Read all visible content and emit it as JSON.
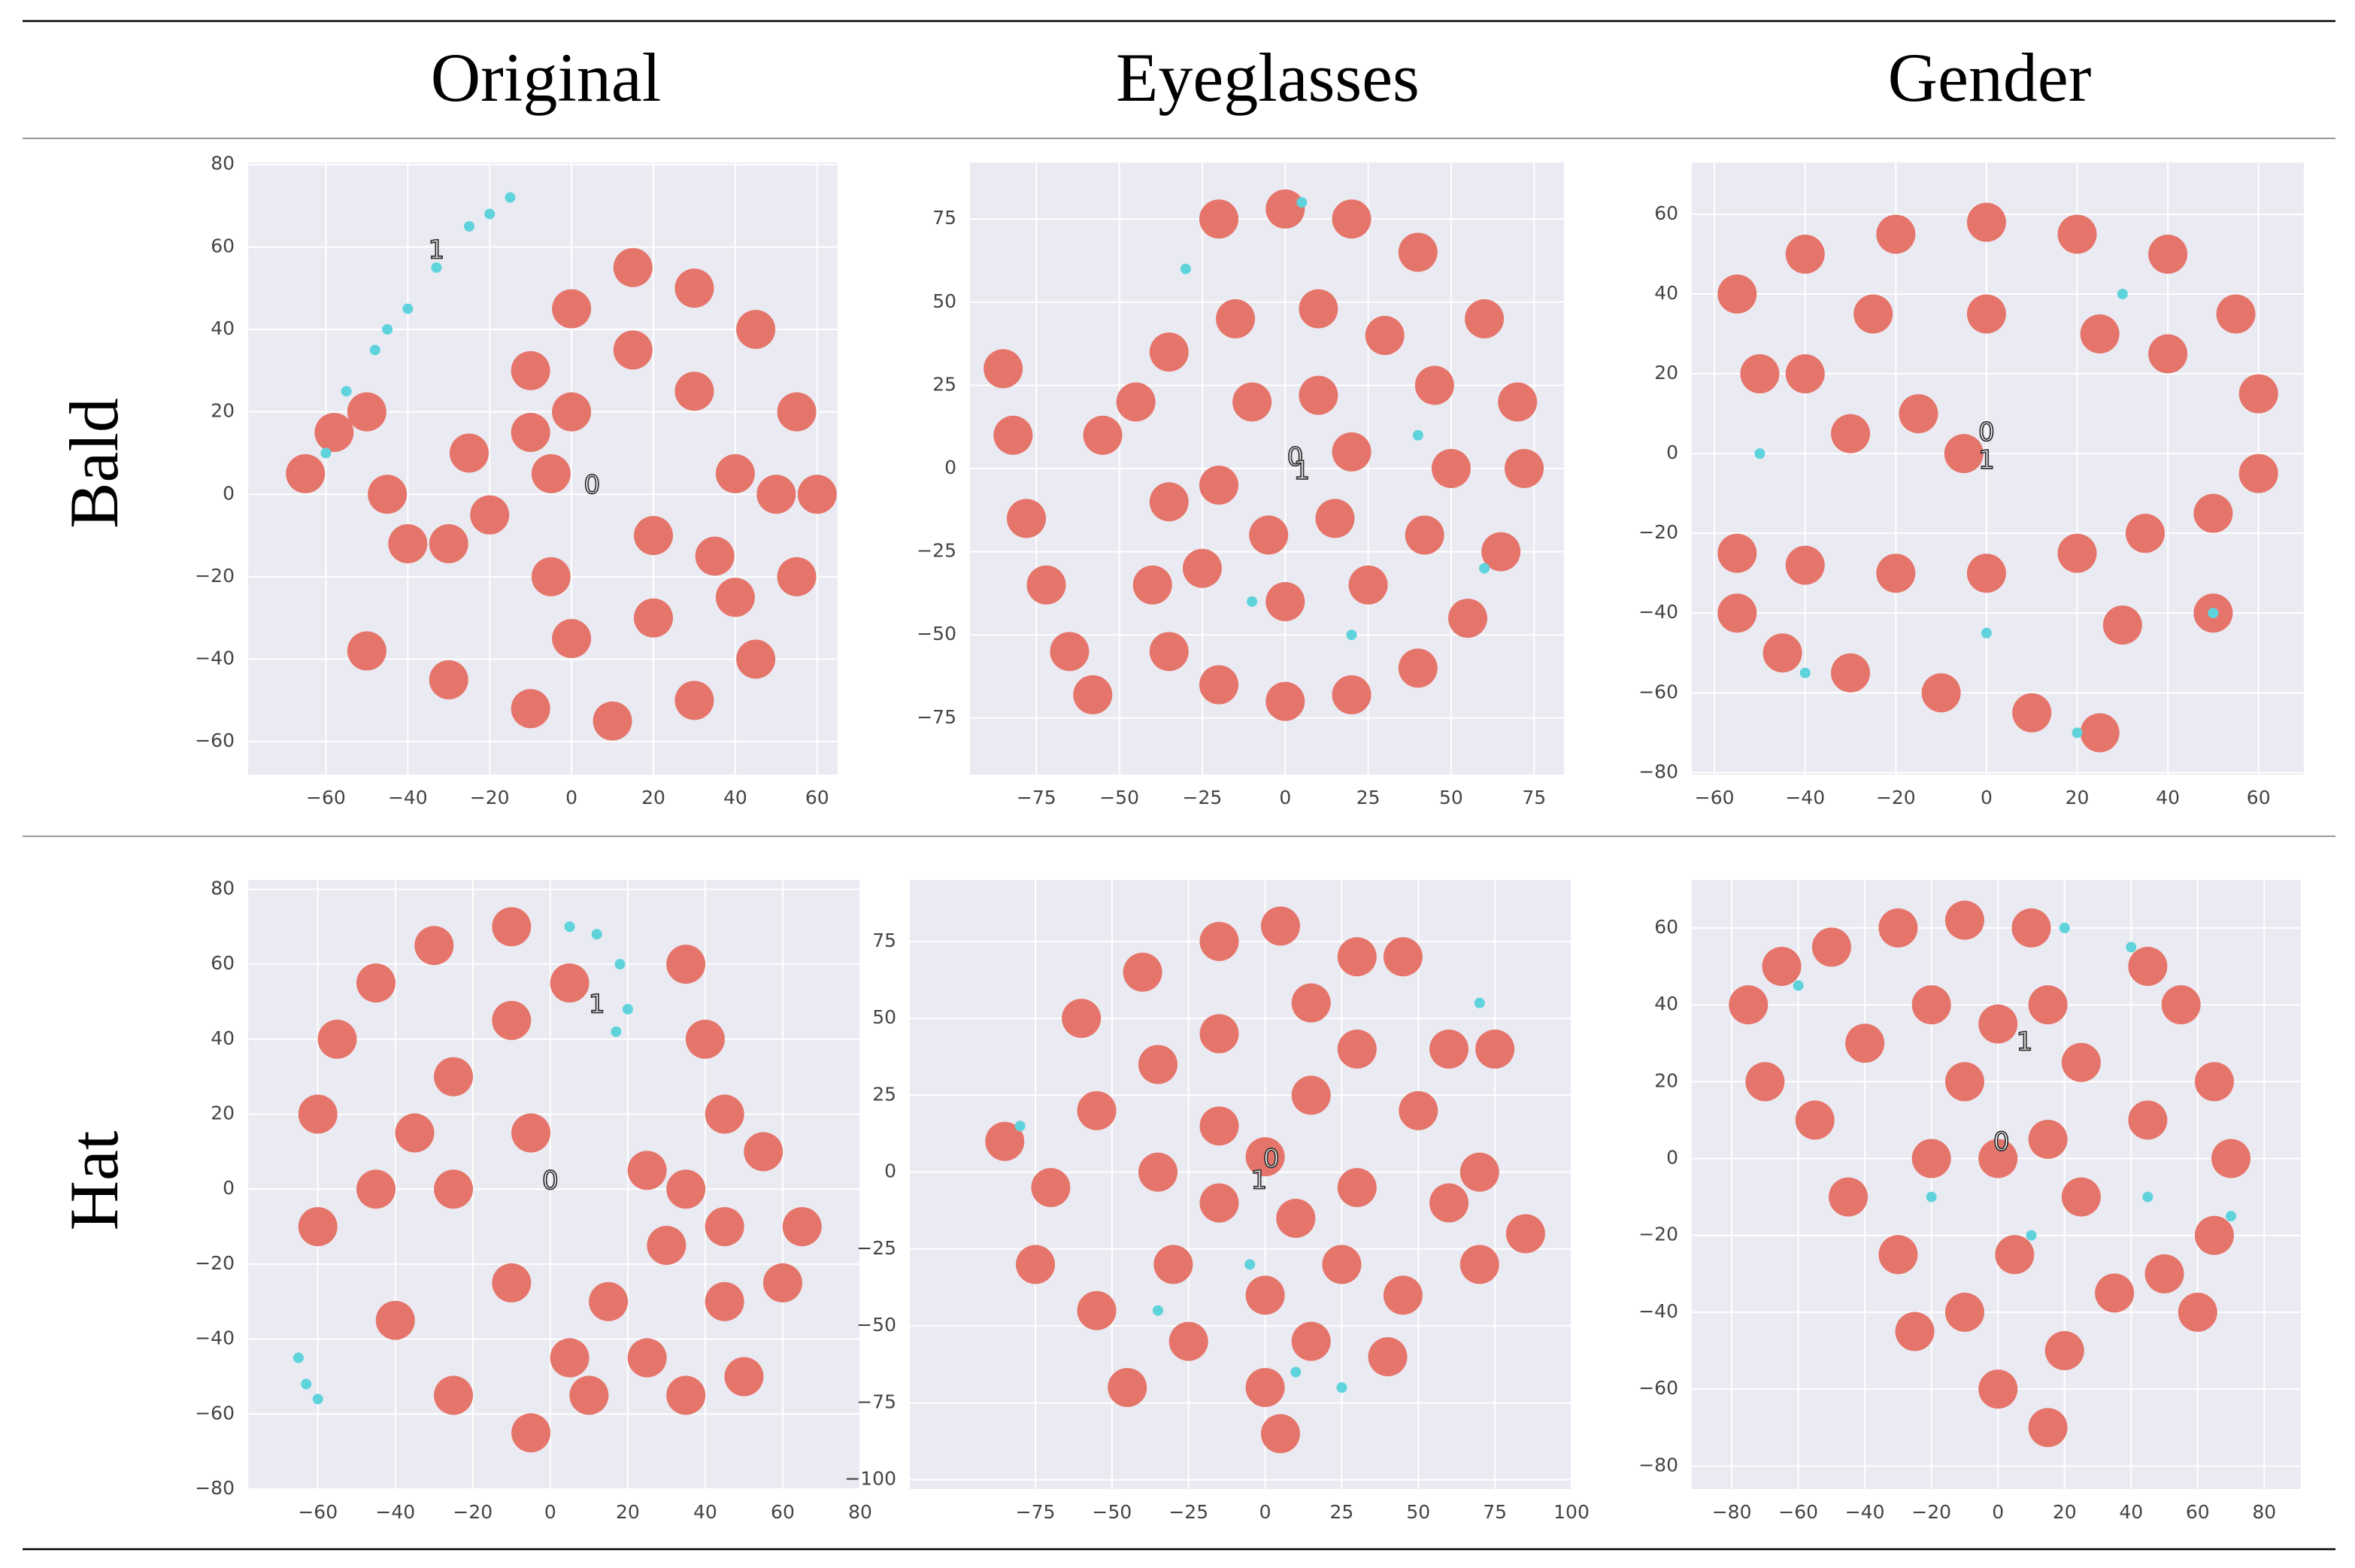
{
  "header": {
    "columns": [
      "Original",
      "Eyeglasses",
      "Gender"
    ],
    "rows": [
      "Bald",
      "Hat"
    ]
  },
  "chart_data": [
    {
      "type": "scatter",
      "grid": true,
      "xlim": [
        -79,
        65
      ],
      "ylim": [
        -68,
        80.5
      ],
      "xticks": [
        {
          "value": -60,
          "label": "−60"
        },
        {
          "value": -40,
          "label": "−40"
        },
        {
          "value": -20,
          "label": "−20"
        },
        0,
        20,
        40,
        60
      ],
      "yticks": [
        {
          "value": -60,
          "label": "−60"
        },
        {
          "value": -40,
          "label": "−40"
        },
        {
          "value": -20,
          "label": "−20"
        },
        0,
        20,
        40,
        60,
        80
      ],
      "series": [
        {
          "color": "#e5756a",
          "x": [
            -65,
            -58,
            -50,
            -45,
            -40,
            -30,
            -20,
            -25,
            -10,
            -10,
            0,
            15,
            30,
            45,
            55,
            60,
            55,
            45,
            30,
            10,
            -10,
            -30,
            -50,
            0,
            20,
            35,
            40,
            30,
            15,
            0,
            -5,
            20,
            -5,
            40,
            50
          ],
          "y": [
            5,
            15,
            20,
            0,
            -12,
            -12,
            -5,
            10,
            15,
            30,
            45,
            55,
            50,
            40,
            20,
            0,
            -20,
            -40,
            -50,
            -55,
            -52,
            -45,
            -38,
            -35,
            -30,
            -15,
            5,
            25,
            35,
            20,
            5,
            -10,
            -20,
            -25,
            0
          ]
        },
        {
          "color": "#5fd3dc",
          "x": [
            -60,
            -55,
            -48,
            -45,
            -40,
            -33,
            -25,
            -20,
            -15
          ],
          "y": [
            10,
            25,
            35,
            40,
            45,
            55,
            65,
            68,
            72
          ]
        }
      ],
      "annotations": [
        {
          "text": "0",
          "x": 5,
          "y": 2
        },
        {
          "text": "1",
          "x": -33,
          "y": 59
        }
      ]
    },
    {
      "type": "scatter",
      "grid": true,
      "xlim": [
        -95,
        84
      ],
      "ylim": [
        -92,
        92
      ],
      "xticks": [
        {
          "value": -75,
          "label": "−75"
        },
        {
          "value": -50,
          "label": "−50"
        },
        {
          "value": -25,
          "label": "−25"
        },
        0,
        25,
        50,
        75
      ],
      "yticks": [
        {
          "value": -75,
          "label": "−75"
        },
        {
          "value": -50,
          "label": "−50"
        },
        {
          "value": -25,
          "label": "−25"
        },
        0,
        25,
        50,
        75
      ],
      "series": [
        {
          "color": "#e5756a",
          "x": [
            -20,
            0,
            20,
            40,
            60,
            70,
            72,
            65,
            55,
            40,
            20,
            0,
            -20,
            -35,
            -40,
            -45,
            -35,
            -15,
            10,
            30,
            45,
            50,
            42,
            25,
            0,
            -25,
            -35,
            -55,
            -10,
            10,
            20,
            15,
            -5,
            -20,
            -85,
            -82,
            -78,
            -72,
            -65,
            -58
          ],
          "y": [
            75,
            78,
            75,
            65,
            45,
            20,
            0,
            -25,
            -45,
            -60,
            -68,
            -70,
            -65,
            -55,
            -35,
            20,
            35,
            45,
            48,
            40,
            25,
            0,
            -20,
            -35,
            -40,
            -30,
            -10,
            10,
            20,
            22,
            5,
            -15,
            -20,
            -5,
            30,
            10,
            -15,
            -35,
            -55,
            -68
          ]
        },
        {
          "color": "#5fd3dc",
          "x": [
            -30,
            20,
            40,
            -10,
            60,
            5
          ],
          "y": [
            60,
            -50,
            10,
            -40,
            -30,
            80
          ]
        }
      ],
      "annotations": [
        {
          "text": "0",
          "x": 3,
          "y": 3
        },
        {
          "text": "1",
          "x": 5,
          "y": -1
        }
      ]
    },
    {
      "type": "scatter",
      "grid": true,
      "xlim": [
        -65,
        70
      ],
      "ylim": [
        -80.5,
        73
      ],
      "xticks": [
        {
          "value": -60,
          "label": "−60"
        },
        {
          "value": -40,
          "label": "−40"
        },
        {
          "value": -20,
          "label": "−20"
        },
        0,
        20,
        40,
        60
      ],
      "yticks": [
        {
          "value": -80,
          "label": "−80"
        },
        {
          "value": -60,
          "label": "−60"
        },
        {
          "value": -40,
          "label": "−40"
        },
        {
          "value": -20,
          "label": "−20"
        },
        0,
        20,
        40,
        60
      ],
      "series": [
        {
          "color": "#e5756a",
          "x": [
            -55,
            -50,
            -40,
            -20,
            0,
            20,
            40,
            55,
            60,
            60,
            50,
            35,
            20,
            0,
            -20,
            -40,
            -55,
            -55,
            -45,
            -30,
            -10,
            10,
            25,
            -40,
            -30,
            -15,
            -5,
            0,
            25,
            -25,
            40,
            30,
            50
          ],
          "y": [
            40,
            20,
            50,
            55,
            58,
            55,
            50,
            35,
            15,
            -5,
            -15,
            -20,
            -25,
            -30,
            -30,
            -28,
            -25,
            -40,
            -50,
            -55,
            -60,
            -65,
            -70,
            20,
            5,
            10,
            0,
            35,
            30,
            35,
            25,
            -43,
            -40
          ]
        },
        {
          "color": "#5fd3dc",
          "x": [
            -50,
            30,
            50,
            0,
            -40,
            20
          ],
          "y": [
            0,
            40,
            -40,
            -45,
            -55,
            -70
          ]
        }
      ],
      "annotations": [
        {
          "text": "0",
          "x": 0,
          "y": 5
        },
        {
          "text": "1",
          "x": 0,
          "y": -2
        }
      ]
    },
    {
      "type": "scatter",
      "grid": true,
      "xlim": [
        -78,
        80
      ],
      "ylim": [
        -80,
        82.5
      ],
      "xticks": [
        {
          "value": -60,
          "label": "−60"
        },
        {
          "value": -40,
          "label": "−40"
        },
        {
          "value": -20,
          "label": "−20"
        },
        0,
        20,
        40,
        60,
        80
      ],
      "yticks": [
        {
          "value": -80,
          "label": "−80"
        },
        {
          "value": -60,
          "label": "−60"
        },
        {
          "value": -40,
          "label": "−40"
        },
        {
          "value": -20,
          "label": "−20"
        },
        0,
        20,
        40,
        60,
        80
      ],
      "series": [
        {
          "color": "#e5756a",
          "x": [
            -60,
            -60,
            -55,
            -45,
            -30,
            -10,
            -45,
            -40,
            -25,
            -5,
            -25,
            -25,
            -10,
            -5,
            -10,
            5,
            10,
            -35,
            5,
            15,
            25,
            35,
            35,
            40,
            45,
            55,
            65,
            60,
            45,
            30,
            25,
            35,
            50,
            45
          ],
          "y": [
            20,
            -10,
            40,
            55,
            65,
            70,
            0,
            -35,
            -55,
            -65,
            30,
            0,
            45,
            15,
            -25,
            -45,
            -55,
            15,
            55,
            -30,
            -45,
            -55,
            60,
            40,
            20,
            10,
            -10,
            -25,
            -30,
            -15,
            5,
            0,
            -50,
            -10
          ]
        },
        {
          "color": "#5fd3dc",
          "x": [
            5,
            12,
            18,
            20,
            17,
            -65,
            -63,
            -60
          ],
          "y": [
            70,
            68,
            60,
            48,
            42,
            -45,
            -52,
            -56
          ]
        }
      ],
      "annotations": [
        {
          "text": "0",
          "x": 0,
          "y": 2
        },
        {
          "text": "1",
          "x": 12,
          "y": 49
        }
      ]
    },
    {
      "type": "scatter",
      "grid": true,
      "xlim": [
        -116,
        100
      ],
      "ylim": [
        -103,
        95
      ],
      "xticks": [
        {
          "value": -75,
          "label": "−75"
        },
        {
          "value": -50,
          "label": "−50"
        },
        {
          "value": -25,
          "label": "−25"
        },
        0,
        25,
        50,
        75,
        100
      ],
      "yticks": [
        {
          "value": -100,
          "label": "−100"
        },
        {
          "value": -75,
          "label": "−75"
        },
        {
          "value": -50,
          "label": "−50"
        },
        {
          "value": -25,
          "label": "−25"
        },
        0,
        25,
        50,
        75
      ],
      "series": [
        {
          "color": "#e5756a",
          "x": [
            -85,
            -70,
            -75,
            -60,
            -55,
            -55,
            -45,
            -40,
            -35,
            -35,
            -30,
            -25,
            -15,
            -15,
            -15,
            -15,
            0,
            0,
            5,
            15,
            15,
            10,
            15,
            5,
            30,
            30,
            30,
            25,
            40,
            50,
            45,
            60,
            60,
            70,
            70,
            85,
            75,
            45,
            0
          ],
          "y": [
            10,
            -5,
            -30,
            50,
            20,
            -45,
            -70,
            65,
            35,
            0,
            -30,
            -55,
            75,
            45,
            15,
            -10,
            -40,
            -70,
            80,
            55,
            25,
            -15,
            -55,
            -85,
            70,
            40,
            -5,
            -30,
            -60,
            20,
            -40,
            40,
            -10,
            0,
            -30,
            -20,
            40,
            70,
            5
          ]
        },
        {
          "color": "#5fd3dc",
          "x": [
            -80,
            -35,
            -5,
            25,
            70,
            10
          ],
          "y": [
            15,
            -45,
            -30,
            -70,
            55,
            -65
          ]
        }
      ],
      "annotations": [
        {
          "text": "0",
          "x": 2,
          "y": 4
        },
        {
          "text": "1",
          "x": -2,
          "y": -3
        }
      ]
    },
    {
      "type": "scatter",
      "grid": true,
      "xlim": [
        -92,
        91
      ],
      "ylim": [
        -86,
        72.5
      ],
      "xticks": [
        {
          "value": -80,
          "label": "−80"
        },
        {
          "value": -60,
          "label": "−60"
        },
        {
          "value": -40,
          "label": "−40"
        },
        {
          "value": -20,
          "label": "−20"
        },
        0,
        20,
        40,
        60,
        80
      ],
      "yticks": [
        {
          "value": -80,
          "label": "−80"
        },
        {
          "value": -60,
          "label": "−60"
        },
        {
          "value": -40,
          "label": "−40"
        },
        {
          "value": -20,
          "label": "−20"
        },
        0,
        20,
        40,
        60
      ],
      "series": [
        {
          "color": "#e5756a",
          "x": [
            -75,
            -65,
            -50,
            -30,
            -10,
            10,
            -70,
            -55,
            -40,
            -20,
            0,
            15,
            25,
            -45,
            -30,
            -20,
            0,
            15,
            25,
            -25,
            -10,
            5,
            0,
            15,
            20,
            35,
            50,
            65,
            70,
            65,
            55,
            45,
            45,
            60,
            -10
          ],
          "y": [
            40,
            50,
            55,
            60,
            62,
            60,
            20,
            10,
            30,
            40,
            35,
            40,
            25,
            -10,
            -25,
            0,
            0,
            5,
            -10,
            -45,
            -40,
            -25,
            -60,
            -70,
            -50,
            -35,
            -30,
            -20,
            0,
            20,
            40,
            50,
            10,
            -40,
            20
          ]
        },
        {
          "color": "#5fd3dc",
          "x": [
            -60,
            10,
            45,
            40,
            -20,
            70,
            20
          ],
          "y": [
            45,
            -20,
            -10,
            55,
            -10,
            -15,
            60
          ]
        }
      ],
      "annotations": [
        {
          "text": "0",
          "x": 1,
          "y": 4
        },
        {
          "text": "1",
          "x": 8,
          "y": 30
        }
      ]
    }
  ]
}
